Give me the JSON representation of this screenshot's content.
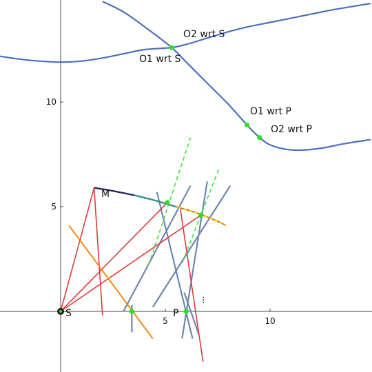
{
  "colors": {
    "curve": "#4a6fbf",
    "steel_line": "#6f86b0",
    "red_line": "#e03a3a",
    "orange_line": "#f28b12",
    "green_dash": "#3ee63e",
    "green_point": "#1ee61e",
    "axis": "#444444",
    "arc_dark": "#1f2a5a",
    "arc_teal": "#2f8f8f",
    "arc_yellow": "#e8d21a"
  },
  "axes": {
    "x_ticks": [
      {
        "value": 5,
        "label": "5"
      },
      {
        "value": 10,
        "label": "10"
      }
    ],
    "y_ticks": [
      {
        "value": 5,
        "label": "5"
      },
      {
        "value": 10,
        "label": "10"
      }
    ]
  },
  "labels": {
    "o2_wrt_s": "O2 wrt S",
    "o1_wrt_s": "O1 wrt S",
    "o1_wrt_p": "O1 wrt P",
    "o2_wrt_p": "O2 wrt P",
    "point_m": "M",
    "point_s": "S",
    "point_p": "P",
    "small_mark": "⁝"
  },
  "points": {
    "S": [
      0,
      0
    ],
    "P": [
      6,
      0
    ],
    "M": [
      1.6,
      5.9
    ],
    "O1_wrt_S": [
      5.3,
      12.6
    ],
    "O1_wrt_P": [
      8.9,
      8.9
    ],
    "O2_wrt_P": [
      9.5,
      8.3
    ],
    "orange_axis_hit": [
      3.4,
      0
    ],
    "tangent_A": [
      5.1,
      5.2
    ],
    "tangent_B": [
      6.7,
      4.6
    ]
  },
  "curves": {
    "upper_curve": [
      [
        -3,
        12.2
      ],
      [
        -2,
        12.05
      ],
      [
        -1,
        11.95
      ],
      [
        0,
        11.9
      ],
      [
        1,
        11.95
      ],
      [
        2,
        12.1
      ],
      [
        3,
        12.3
      ],
      [
        4,
        12.5
      ],
      [
        5.3,
        12.6
      ],
      [
        6,
        12.75
      ],
      [
        7,
        13.05
      ],
      [
        8,
        13.35
      ],
      [
        9,
        13.6
      ],
      [
        10,
        13.8
      ],
      [
        11,
        14.0
      ],
      [
        12,
        14.2
      ],
      [
        13,
        14.4
      ],
      [
        14.8,
        14.7
      ]
    ],
    "lower_curve": [
      [
        2,
        14.8
      ],
      [
        3,
        14.3
      ],
      [
        4,
        13.6
      ],
      [
        5.3,
        12.6
      ],
      [
        6,
        11.9
      ],
      [
        7,
        10.9
      ],
      [
        8,
        9.9
      ],
      [
        8.9,
        8.9
      ],
      [
        9.5,
        8.3
      ],
      [
        10,
        7.95
      ],
      [
        10.7,
        7.75
      ],
      [
        11.5,
        7.7
      ],
      [
        12.5,
        7.8
      ],
      [
        13.5,
        8.0
      ],
      [
        14.8,
        8.2
      ]
    ],
    "arc": [
      [
        1.6,
        5.9
      ],
      [
        2.5,
        5.75
      ],
      [
        3.5,
        5.55
      ],
      [
        4.5,
        5.3
      ],
      [
        5.5,
        5.0
      ],
      [
        6.5,
        4.7
      ],
      [
        7.5,
        4.3
      ],
      [
        7.9,
        4.1
      ]
    ]
  },
  "segments": {
    "red": [
      [
        [
          0,
          0
        ],
        [
          1.6,
          5.9
        ]
      ],
      [
        [
          1.6,
          5.9
        ],
        [
          2.0,
          -0.2
        ]
      ],
      [
        [
          0,
          0
        ],
        [
          5.1,
          5.2
        ]
      ],
      [
        [
          0,
          0
        ],
        [
          6.7,
          4.6
        ]
      ],
      [
        [
          5.7,
          5.0
        ],
        [
          6.8,
          -2.4
        ]
      ]
    ],
    "orange": [
      [
        [
          0.4,
          4.1
        ],
        [
          4.4,
          -1.3
        ]
      ]
    ],
    "steel": [
      [
        [
          3.4,
          -1.0
        ],
        [
          3.4,
          0.3
        ]
      ],
      [
        [
          3.0,
          0
        ],
        [
          6.2,
          6.0
        ]
      ],
      [
        [
          4.6,
          5.7
        ],
        [
          6.3,
          -1.3
        ]
      ],
      [
        [
          5.8,
          -1.3
        ],
        [
          7.0,
          6.2
        ]
      ],
      [
        [
          6.6,
          -1.1
        ],
        [
          5.9,
          0.9
        ]
      ],
      [
        [
          4.4,
          0.2
        ],
        [
          8.1,
          6.0
        ]
      ]
    ],
    "green_dash": [
      [
        [
          4.2,
          2.2
        ],
        [
          6.2,
          8.3
        ]
      ],
      [
        [
          5.8,
          2.3
        ],
        [
          7.6,
          6.9
        ]
      ]
    ]
  },
  "points_green": [
    [
      5.3,
      12.6
    ],
    [
      8.9,
      8.9
    ],
    [
      9.5,
      8.3
    ],
    [
      5.1,
      5.2
    ],
    [
      6.7,
      4.6
    ],
    [
      3.4,
      0
    ],
    [
      6,
      0
    ]
  ]
}
